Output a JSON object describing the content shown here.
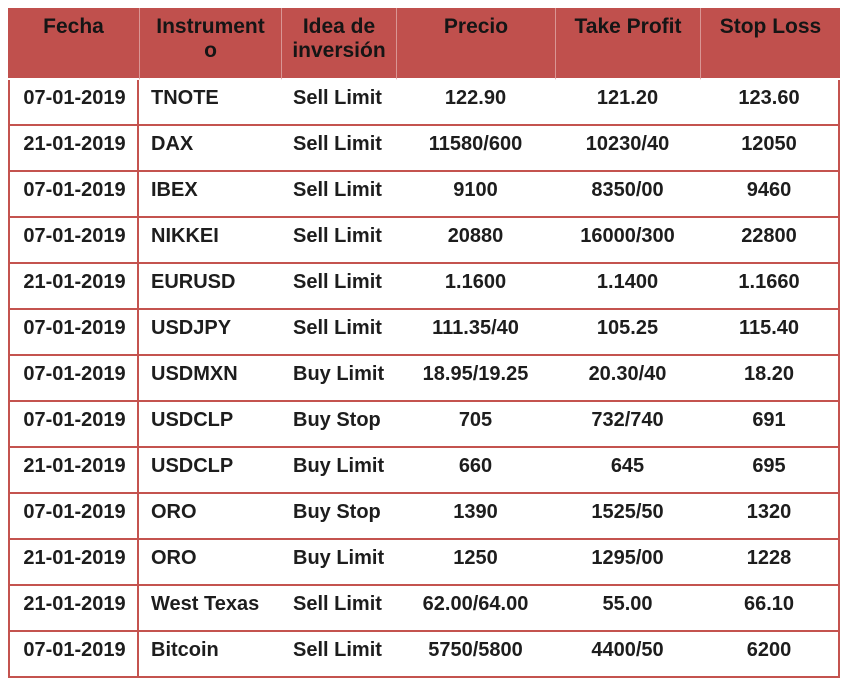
{
  "colors": {
    "header_bg": "#C0504D",
    "row_border": "#C4534F",
    "text": "#1D1D1D",
    "header_separator": "rgba(255,255,255,0.40)"
  },
  "table": {
    "columns": [
      {
        "key": "fecha",
        "label": "Fecha"
      },
      {
        "key": "instrumento",
        "label": "Instrumento"
      },
      {
        "key": "idea",
        "label": "Idea de inversión"
      },
      {
        "key": "precio",
        "label": "Precio"
      },
      {
        "key": "take_profit",
        "label": "Take Profit"
      },
      {
        "key": "stop_loss",
        "label": "Stop Loss"
      }
    ],
    "rows": [
      [
        "07-01-2019",
        "TNOTE",
        "Sell Limit",
        "122.90",
        "121.20",
        "123.60"
      ],
      [
        "21-01-2019",
        "DAX",
        "Sell Limit",
        "11580/600",
        "10230/40",
        "12050"
      ],
      [
        "07-01-2019",
        "IBEX",
        "Sell Limit",
        "9100",
        "8350/00",
        "9460"
      ],
      [
        "07-01-2019",
        "NIKKEI",
        "Sell Limit",
        "20880",
        "16000/300",
        "22800"
      ],
      [
        "21-01-2019",
        "EURUSD",
        "Sell Limit",
        "1.1600",
        "1.1400",
        "1.1660"
      ],
      [
        "07-01-2019",
        "USDJPY",
        "Sell Limit",
        "111.35/40",
        "105.25",
        "115.40"
      ],
      [
        "07-01-2019",
        "USDMXN",
        "Buy Limit",
        "18.95/19.25",
        "20.30/40",
        "18.20"
      ],
      [
        "07-01-2019",
        "USDCLP",
        "Buy Stop",
        "705",
        "732/740",
        "691"
      ],
      [
        "21-01-2019",
        "USDCLP",
        "Buy Limit",
        "660",
        "645",
        "695"
      ],
      [
        "07-01-2019",
        "ORO",
        "Buy Stop",
        "1390",
        "1525/50",
        "1320"
      ],
      [
        "21-01-2019",
        "ORO",
        "Buy Limit",
        "1250",
        "1295/00",
        "1228"
      ],
      [
        "21-01-2019",
        "West Texas",
        "Sell Limit",
        "62.00/64.00",
        "55.00",
        "66.10"
      ],
      [
        "07-01-2019",
        "Bitcoin",
        "Sell Limit",
        "5750/5800",
        "4400/50",
        "6200"
      ]
    ]
  }
}
